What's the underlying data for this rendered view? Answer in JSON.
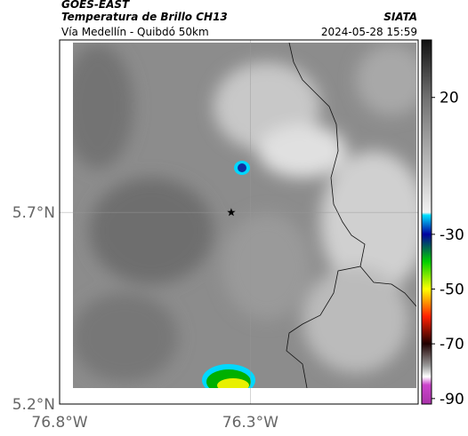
{
  "header": {
    "source": "GOES-EAST",
    "title": "Temperatura de Brillo CH13",
    "credit": "SIATA",
    "subtitle": "Vía Medellín - Quibdó 50km",
    "timestamp": "2024-05-28 15:59"
  },
  "map": {
    "xlim": [
      -76.8,
      -75.86
    ],
    "ylim": [
      5.2,
      6.15
    ],
    "xticks": [
      {
        "value": -76.8,
        "label": "76.8°W"
      },
      {
        "value": -76.3,
        "label": "76.3°W"
      }
    ],
    "yticks": [
      {
        "value": 5.2,
        "label": "5.2°N"
      },
      {
        "value": 5.7,
        "label": "5.7°N"
      }
    ],
    "grid": true,
    "station": {
      "lon": -76.35,
      "lat": 5.7
    }
  },
  "colorbar": {
    "clim": [
      -92,
      41
    ],
    "ticks": [
      20,
      -30,
      -50,
      -70,
      -90
    ],
    "colormap": [
      [
        41,
        "#111111"
      ],
      [
        20,
        "#707070"
      ],
      [
        -22,
        "#f2f2f2"
      ],
      [
        -23,
        "#00e0ff"
      ],
      [
        -30,
        "#0000a0"
      ],
      [
        -40,
        "#00d000"
      ],
      [
        -50,
        "#ffff00"
      ],
      [
        -60,
        "#ff2000"
      ],
      [
        -70,
        "#200000"
      ],
      [
        -78,
        "#999999"
      ],
      [
        -82,
        "#ffffff"
      ],
      [
        -85,
        "#cc44cc"
      ],
      [
        -92,
        "#aa33aa"
      ]
    ]
  }
}
